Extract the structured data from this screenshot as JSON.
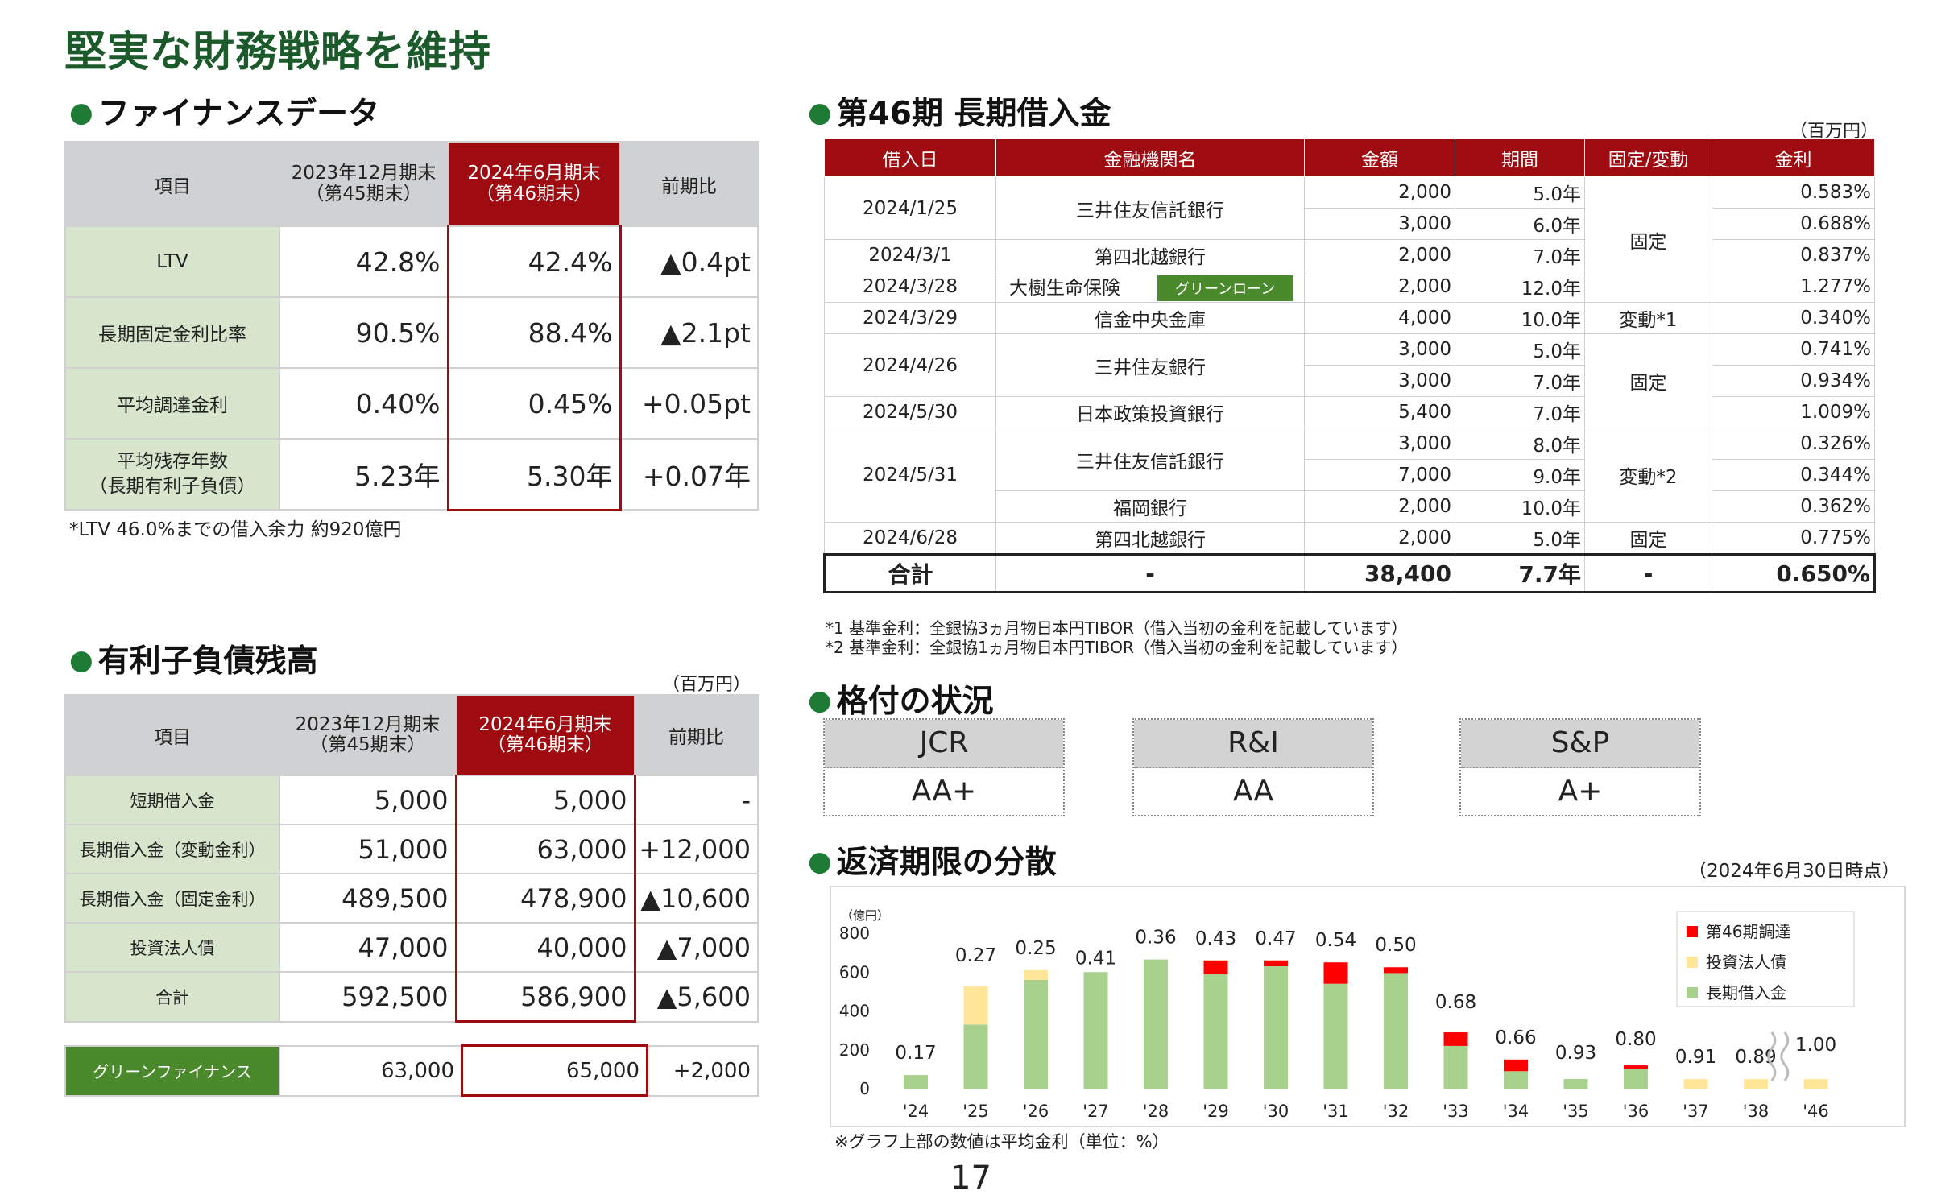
{
  "page_title": "堅実な財務戦略を維持",
  "page_number": "17",
  "finance": {
    "heading": "ファイナンスデータ",
    "headers": [
      "項目",
      "2023年12月期末\n（第45期末）",
      "2024年6月期末\n（第46期末）",
      "前期比"
    ],
    "rows": [
      {
        "label": "LTV",
        "prev": "42.8%",
        "cur": "42.4%",
        "diff": "▲0.4pt"
      },
      {
        "label": "長期固定金利比率",
        "prev": "90.5%",
        "cur": "88.4%",
        "diff": "▲2.1pt"
      },
      {
        "label": "平均調達金利",
        "prev": "0.40%",
        "cur": "0.45%",
        "diff": "+0.05pt"
      },
      {
        "label": "平均残存年数\n（長期有利子負債）",
        "prev": "5.23年",
        "cur": "5.30年",
        "diff": "+0.07年"
      }
    ],
    "note": "*LTV 46.0%までの借入余力 約920億円"
  },
  "loans": {
    "heading": "第46期 長期借入金",
    "unit": "（百万円）",
    "headers": [
      "借入日",
      "金融機関名",
      "金額",
      "期間",
      "固定/変動",
      "金利"
    ],
    "rows": [
      {
        "date": "2024/1/25",
        "bank": "三井住友信託銀行",
        "amount": "2,000",
        "term": "5.0年",
        "type": "固定",
        "rate": "0.583%"
      },
      {
        "date": "",
        "bank": "",
        "amount": "3,000",
        "term": "6.0年",
        "type": "",
        "rate": "0.688%"
      },
      {
        "date": "2024/3/1",
        "bank": "第四北越銀行",
        "amount": "2,000",
        "term": "7.0年",
        "type": "",
        "rate": "0.837%"
      },
      {
        "date": "2024/3/28",
        "bank": "大樹生命保険",
        "tag": "グリーンローン",
        "amount": "2,000",
        "term": "12.0年",
        "type": "",
        "rate": "1.277%"
      },
      {
        "date": "2024/3/29",
        "bank": "信金中央金庫",
        "amount": "4,000",
        "term": "10.0年",
        "type": "変動*1",
        "rate": "0.340%"
      },
      {
        "date": "2024/4/26",
        "bank": "三井住友銀行",
        "amount": "3,000",
        "term": "5.0年",
        "type": "固定",
        "rate": "0.741%"
      },
      {
        "date": "",
        "bank": "",
        "amount": "3,000",
        "term": "7.0年",
        "type": "",
        "rate": "0.934%"
      },
      {
        "date": "2024/5/30",
        "bank": "日本政策投資銀行",
        "amount": "5,400",
        "term": "7.0年",
        "type": "",
        "rate": "1.009%"
      },
      {
        "date": "2024/5/31",
        "bank": "三井住友信託銀行",
        "amount": "3,000",
        "term": "8.0年",
        "type": "変動*2",
        "rate": "0.326%"
      },
      {
        "date": "",
        "bank": "",
        "amount": "7,000",
        "term": "9.0年",
        "type": "",
        "rate": "0.344%"
      },
      {
        "date": "",
        "bank": "福岡銀行",
        "amount": "2,000",
        "term": "10.0年",
        "type": "",
        "rate": "0.362%"
      },
      {
        "date": "2024/6/28",
        "bank": "第四北越銀行",
        "amount": "2,000",
        "term": "5.0年",
        "type": "固定",
        "rate": "0.775%"
      }
    ],
    "total": {
      "label": "合計",
      "bank": "-",
      "amount": "38,400",
      "term": "7.7年",
      "type": "-",
      "rate": "0.650%"
    },
    "notes": [
      "*1  基準金利：全銀協3ヵ月物日本円TIBOR（借入当初の金利を記載しています）",
      "*2  基準金利：全銀協1ヵ月物日本円TIBOR（借入当初の金利を記載しています）"
    ]
  },
  "debt": {
    "heading": "有利子負債残高",
    "unit": "（百万円）",
    "headers": [
      "項目",
      "2023年12月期末\n（第45期末）",
      "2024年6月期末\n（第46期末）",
      "前期比"
    ],
    "rows": [
      {
        "label": "短期借入金",
        "prev": "5,000",
        "cur": "5,000",
        "diff": "-"
      },
      {
        "label": "長期借入金（変動金利）",
        "prev": "51,000",
        "cur": "63,000",
        "diff": "+12,000"
      },
      {
        "label": "長期借入金（固定金利）",
        "prev": "489,500",
        "cur": "478,900",
        "diff": "▲10,600"
      },
      {
        "label": "投資法人債",
        "prev": "47,000",
        "cur": "40,000",
        "diff": "▲7,000"
      },
      {
        "label": "合計",
        "prev": "592,500",
        "cur": "586,900",
        "diff": "▲5,600"
      }
    ],
    "green": {
      "label": "グリーンファイナンス",
      "prev": "63,000",
      "cur": "65,000",
      "diff": "+2,000"
    }
  },
  "ratings": {
    "heading": "格付の状況",
    "items": [
      {
        "agency": "JCR",
        "rating": "AA+"
      },
      {
        "agency": "R&I",
        "rating": "AA"
      },
      {
        "agency": "S&P",
        "rating": "A+"
      }
    ]
  },
  "maturity": {
    "heading": "返済期限の分散",
    "as_of": "（2024年6月30日時点）",
    "note": "※グラフ上部の数値は平均金利（単位：%）"
  },
  "colors": {
    "green": "#a9d18e",
    "yellow": "#ffe699",
    "red": "#ff0000",
    "accent": "#9e0b10",
    "title": "#1c5a2c"
  },
  "chart_data": {
    "type": "bar",
    "stacked": true,
    "ylabel": "（億円）",
    "ylim": [
      0,
      800
    ],
    "yticks": [
      0,
      200,
      400,
      600,
      800
    ],
    "categories": [
      "'24",
      "'25",
      "'26",
      "'27",
      "'28",
      "'29",
      "'30",
      "'31",
      "'32",
      "'33",
      "'34",
      "'35",
      "'36",
      "'37",
      "'38",
      "'46"
    ],
    "series": [
      {
        "name": "長期借入金",
        "color": "#a9d18e",
        "values": [
          70,
          330,
          560,
          600,
          665,
          590,
          630,
          540,
          595,
          220,
          90,
          50,
          100,
          0,
          0,
          0
        ]
      },
      {
        "name": "投資法人債",
        "color": "#ffe699",
        "values": [
          0,
          200,
          50,
          0,
          0,
          0,
          0,
          0,
          0,
          0,
          0,
          0,
          0,
          50,
          50,
          50
        ]
      },
      {
        "name": "第46期調達",
        "color": "#ff0000",
        "values": [
          0,
          0,
          0,
          0,
          0,
          70,
          30,
          110,
          30,
          70,
          60,
          0,
          20,
          0,
          0,
          0
        ]
      }
    ],
    "labels": [
      "0.17",
      "0.27",
      "0.25",
      "0.41",
      "0.36",
      "0.43",
      "0.47",
      "0.54",
      "0.50",
      "0.68",
      "0.66",
      "0.93",
      "0.80",
      "0.91",
      "0.89",
      "1.00"
    ],
    "legend": "top-right"
  }
}
